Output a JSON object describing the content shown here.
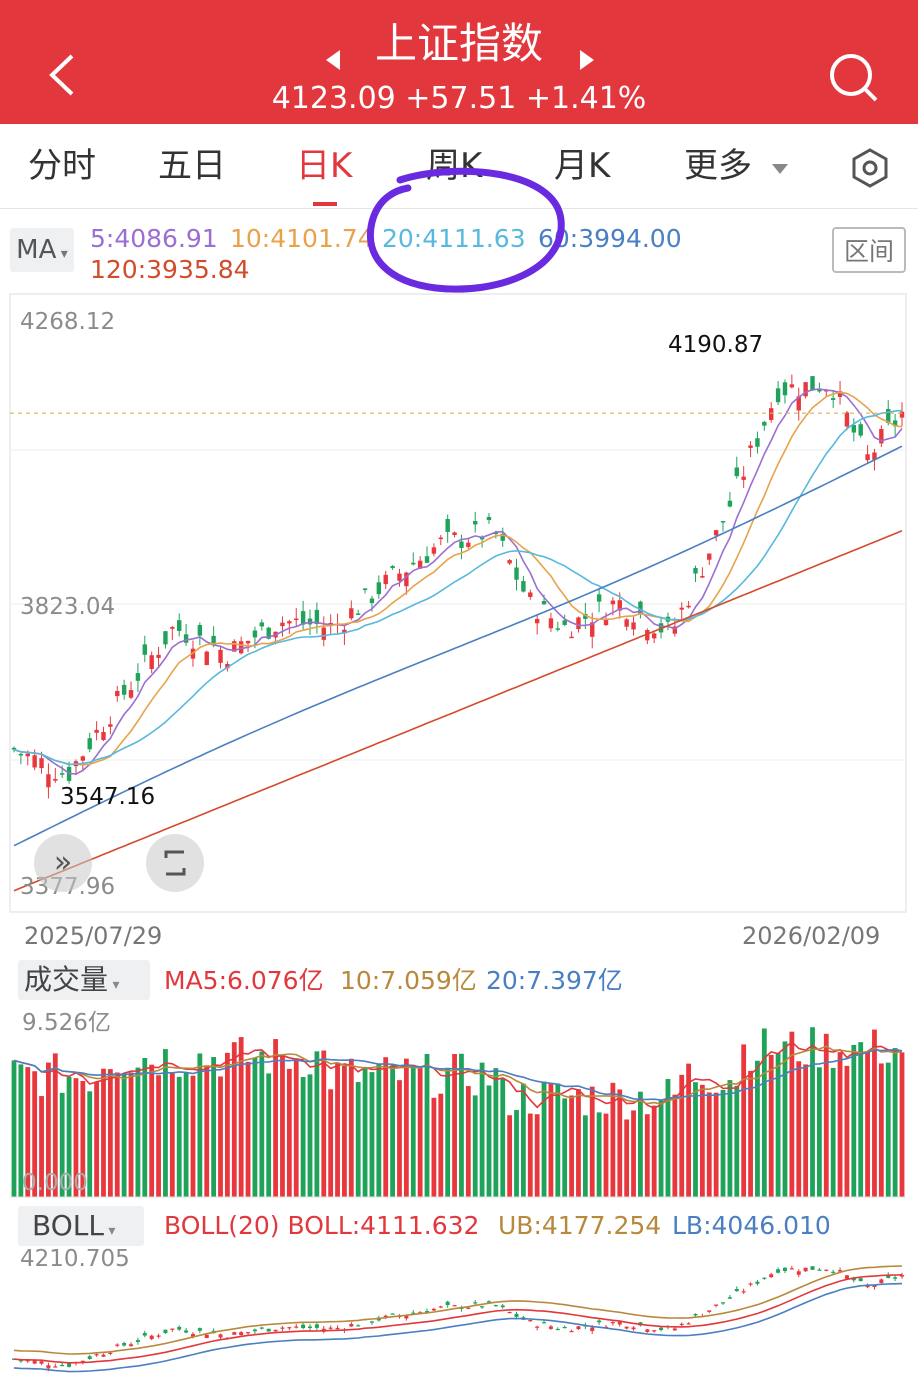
{
  "header": {
    "title": "上证指数",
    "quote": "4123.09 +57.51 +1.41%",
    "colors": {
      "bg": "#e2373d",
      "fg": "#ffffff"
    },
    "icons": [
      "back-arrow-icon",
      "prev-triangle-icon",
      "next-triangle-icon",
      "search-icon"
    ]
  },
  "tabs": {
    "items": [
      "分时",
      "五日",
      "日K",
      "周K",
      "月K",
      "更多"
    ],
    "active": "日K"
  },
  "ma_bar": {
    "selector": "MA",
    "values": [
      "5:4086.91",
      "10:4101.74",
      "20:4111.63",
      "60:3994.00",
      "120:3935.84"
    ],
    "range_button": "区间"
  },
  "kline": {
    "axis_labels": [
      "4268.12",
      "3823.04",
      "3377.96"
    ],
    "high_label": "4190.87",
    "low_label": "3547.16",
    "date_start": "2025/07/29",
    "date_end": "2026/02/09",
    "last_price_line": 4123.09
  },
  "chart_data": {
    "type": "line",
    "ylim": [
      3377.96,
      4268.12
    ],
    "x": [
      "2025/07/29",
      "2026/02/09"
    ],
    "series": [
      {
        "name": "MA5",
        "color": "#9b6fd1"
      },
      {
        "name": "MA10",
        "color": "#e8a24a"
      },
      {
        "name": "MA20",
        "color": "#56b9dd"
      },
      {
        "name": "MA60",
        "color": "#4a7fc1"
      },
      {
        "name": "MA120",
        "color": "#d24c2c"
      }
    ],
    "colors": {
      "up": "#e8383d",
      "down": "#1fa35a"
    }
  },
  "volume": {
    "selector": "成交量",
    "ma_values": [
      "MA5:6.076亿",
      "10:7.059亿",
      "20:7.397亿"
    ],
    "max_label": "9.526亿",
    "min_label": "0.000"
  },
  "boll": {
    "selector": "BOLL",
    "values": [
      "BOLL(20) BOLL:4111.632",
      "UB:4177.254",
      "LB:4046.010"
    ],
    "top_label": "4210.705"
  }
}
